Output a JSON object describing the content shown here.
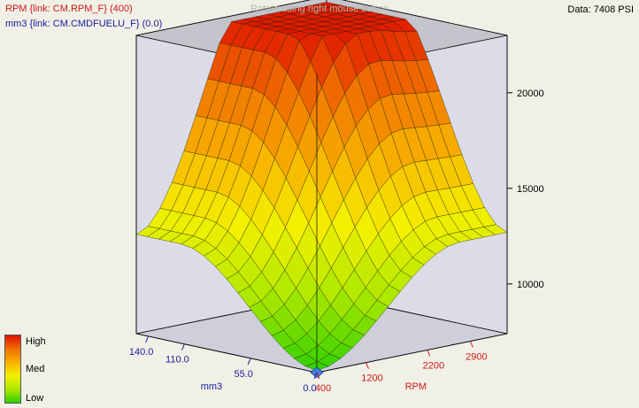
{
  "header": {
    "x_channel": "RPM {link: CM.RPM_F} (400)",
    "y_channel": "mm3 {link: CM.CMDFUELU_F} (0.0)",
    "hint": "Rotate using right mouse button",
    "data_readout": "Data: 7408 PSI"
  },
  "colors": {
    "background": "#f0f0e6",
    "x_axis_color": "#d01818",
    "y_axis_color": "#1a1aa0",
    "box_back_wall": "#dcdce8",
    "box_floor": "#cfcfdc",
    "box_top": "#c4c4cc",
    "marker": "#3e7fd8"
  },
  "color_scale": {
    "high": "High",
    "med": "Med",
    "low": "Low"
  },
  "chart_data": {
    "type": "surface",
    "x_axis": {
      "label": "RPM",
      "range": [
        400,
        3500
      ],
      "ticks": [
        "400",
        "1200",
        "2200",
        "2900"
      ],
      "tick_values": [
        400,
        1200,
        2200,
        2900
      ]
    },
    "y_axis": {
      "label": "mm3",
      "range": [
        0,
        150
      ],
      "ticks": [
        "0.0",
        "55.0",
        "110.0",
        "140.0"
      ],
      "tick_values": [
        0,
        55,
        110,
        140
      ]
    },
    "z_axis": {
      "label": "",
      "unit": "PSI",
      "range": [
        7400,
        23000
      ],
      "ticks": [
        "10000",
        "15000",
        "20000"
      ],
      "tick_values": [
        10000,
        15000,
        20000
      ]
    },
    "grid": {
      "rpm_steps": 16,
      "mm3_steps": 16
    },
    "current_point": {
      "rpm": 400,
      "mm3": 0.0,
      "value": 7408
    },
    "color_map": [
      "#30d000",
      "#aee800",
      "#f4f000",
      "#f8b000",
      "#f07000",
      "#e01000"
    ]
  }
}
